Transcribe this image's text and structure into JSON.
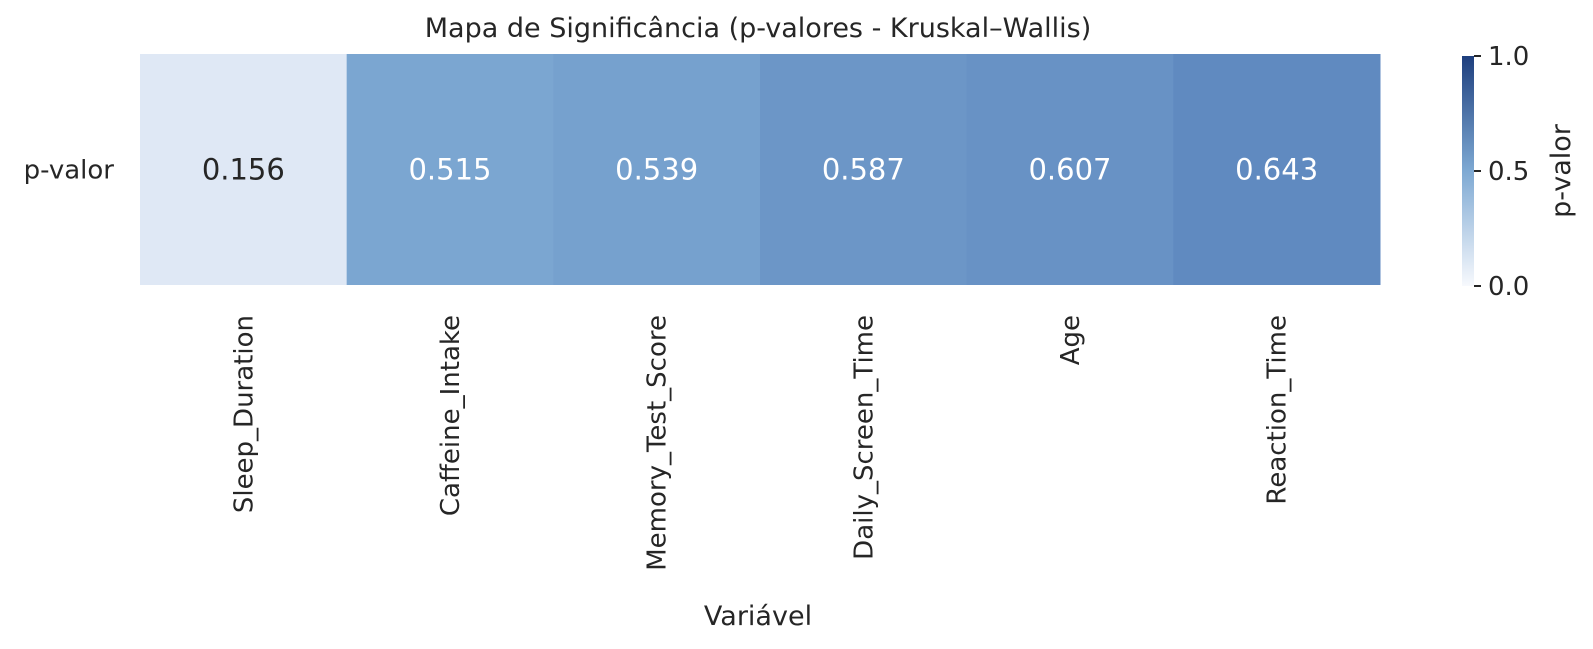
{
  "chart_data": {
    "type": "heatmap",
    "title": "Mapa de Significância (p-valores - Kruskal–Wallis)",
    "xlabel": "Variável",
    "ylabel": "",
    "row_labels": [
      "p-valor"
    ],
    "categories": [
      "Sleep_Duration",
      "Caffeine_Intake",
      "Memory_Test_Score",
      "Daily_Screen_Time",
      "Age",
      "Reaction_Time"
    ],
    "values": [
      [
        0.156,
        0.515,
        0.539,
        0.587,
        0.607,
        0.643
      ]
    ],
    "value_labels": [
      "0.156",
      "0.515",
      "0.539",
      "0.587",
      "0.607",
      "0.643"
    ],
    "colorbar": {
      "label": "p-valor",
      "range": [
        0.0,
        1.0
      ],
      "ticks": [
        0.0,
        0.5,
        1.0
      ],
      "tick_labels": [
        "0.0",
        "0.5",
        "1.0"
      ],
      "colormap": "white-to-dark-blue",
      "color_low": "#f7f9fd",
      "color_high": "#1e3f7e"
    },
    "grid": false
  }
}
